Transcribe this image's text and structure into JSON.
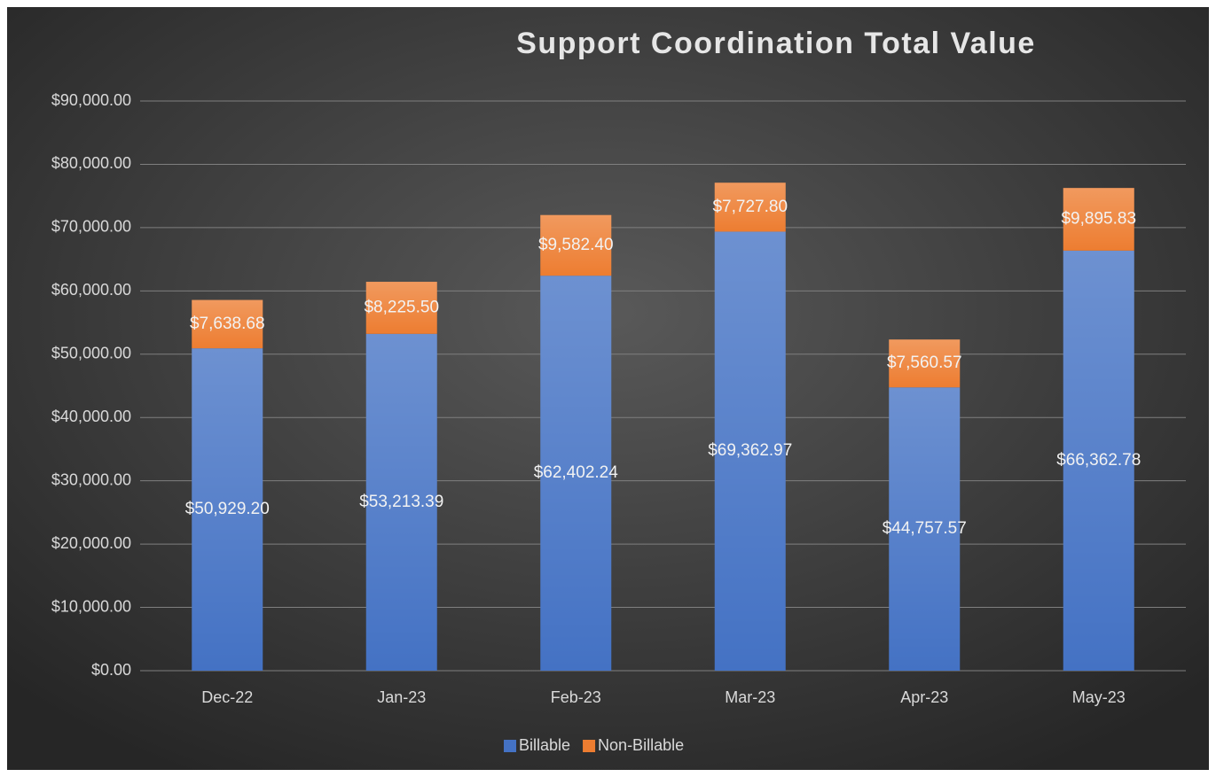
{
  "chart_data": {
    "type": "stacked_bar",
    "title": "Support Coordination Total Value",
    "categories": [
      "Dec-22",
      "Jan-23",
      "Feb-23",
      "Mar-23",
      "Apr-23",
      "May-23"
    ],
    "series": [
      {
        "name": "Billable",
        "color": "#4472c4",
        "values": [
          50929.2,
          53213.39,
          62402.24,
          69362.97,
          44757.57,
          66362.78
        ],
        "value_labels": [
          "$50,929.20",
          "$53,213.39",
          "$62,402.24",
          "$69,362.97",
          "$44,757.57",
          "$66,362.78"
        ]
      },
      {
        "name": "Non-Billable",
        "color": "#ed7d31",
        "values": [
          7638.68,
          8225.5,
          9582.4,
          7727.8,
          7560.57,
          9895.83
        ],
        "value_labels": [
          "$7,638.68",
          "$8,225.50",
          "$9,582.40",
          "$7,727.80",
          "$7,560.57",
          "$9,895.83"
        ]
      }
    ],
    "ylim": [
      0,
      90000
    ],
    "yticks": [
      {
        "value": 0,
        "label": "$0.00"
      },
      {
        "value": 10000,
        "label": "$10,000.00"
      },
      {
        "value": 20000,
        "label": "$20,000.00"
      },
      {
        "value": 30000,
        "label": "$30,000.00"
      },
      {
        "value": 40000,
        "label": "$40,000.00"
      },
      {
        "value": 50000,
        "label": "$50,000.00"
      },
      {
        "value": 60000,
        "label": "$60,000.00"
      },
      {
        "value": 70000,
        "label": "$70,000.00"
      },
      {
        "value": 80000,
        "label": "$80,000.00"
      },
      {
        "value": 90000,
        "label": "$90,000.00"
      }
    ],
    "grid": true,
    "legend": "bottom"
  }
}
